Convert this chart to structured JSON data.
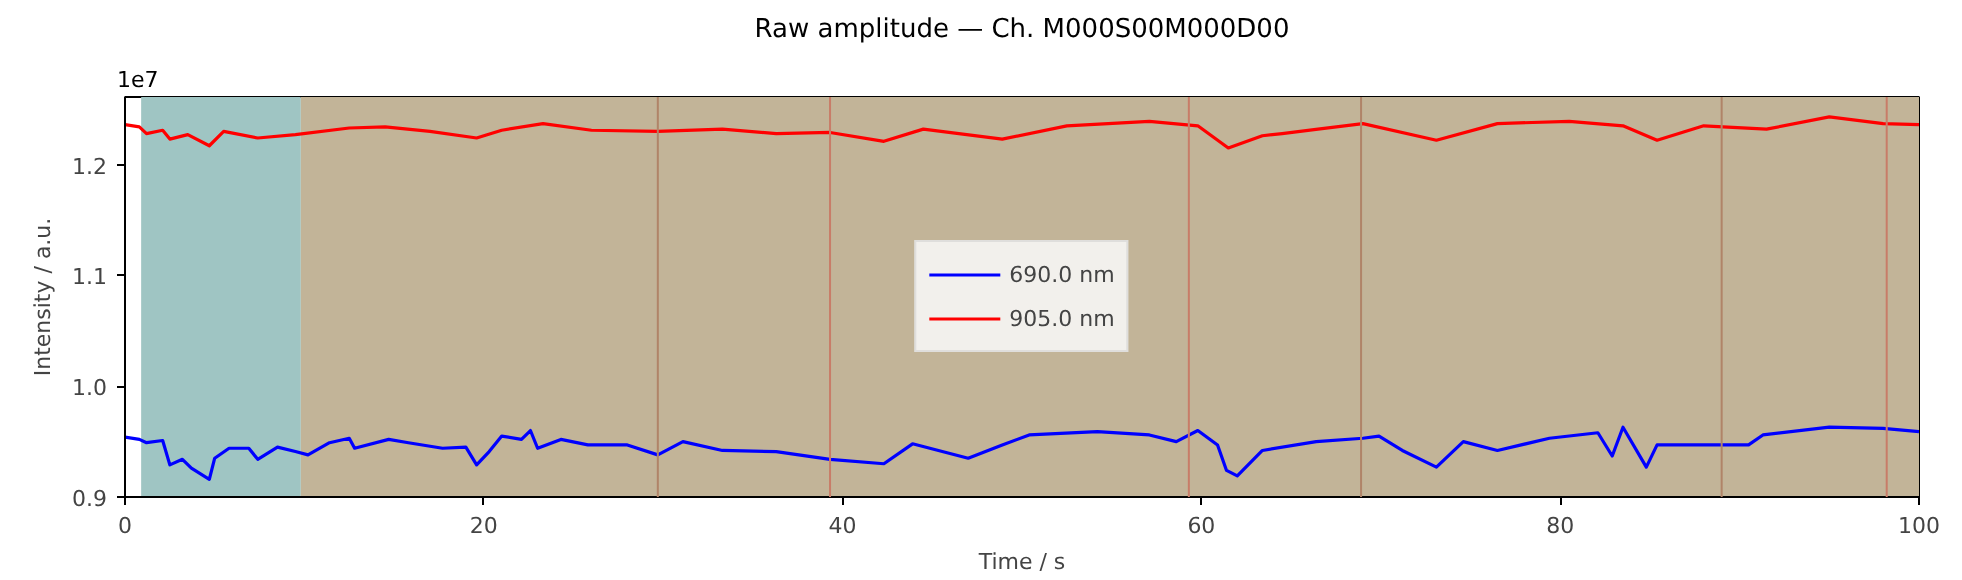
{
  "chart_data": {
    "type": "line",
    "title": "Raw amplitude — Ch. M000S00M000D00",
    "xlabel": "Time / s",
    "ylabel": "Intensity / a.u.",
    "annotations": [
      "1e7"
    ],
    "xlim": [
      0,
      100
    ],
    "xticks": [
      0,
      20,
      40,
      60,
      80,
      100
    ],
    "ylim": [
      0.9,
      1.261
    ],
    "yticks": [
      0.9,
      {
        "value": 1.0,
        "label": "1.0"
      },
      1.1,
      1.2
    ],
    "grid": false,
    "legend": "center",
    "bands": [
      {
        "axis": "x",
        "from": 0.9,
        "to": 9.8,
        "color": "#9fc5c3"
      },
      {
        "axis": "x",
        "from": 9.8,
        "to": 100,
        "color": "#c2b498"
      }
    ],
    "ref_lines": [
      {
        "axis": "x",
        "value": 29.7,
        "color": "#b08468"
      },
      {
        "axis": "x",
        "value": 39.3,
        "color": "#c87c68"
      },
      {
        "axis": "x",
        "value": 59.3,
        "color": "#c87c68"
      },
      {
        "axis": "x",
        "value": 68.9,
        "color": "#b08468"
      },
      {
        "axis": "x",
        "value": 89.0,
        "color": "#b08468"
      },
      {
        "axis": "x",
        "value": 98.2,
        "color": "#c87c68"
      }
    ],
    "series": [
      {
        "name": "690.0 nm",
        "color": "#0000ff",
        "x": [
          0,
          0.8,
          1.2,
          2.1,
          2.5,
          3.2,
          3.7,
          4.7,
          5.0,
          5.8,
          6.9,
          7.4,
          8.5,
          9.5,
          10.2,
          11.4,
          12.5,
          12.8,
          14.7,
          15.8,
          17.7,
          19.0,
          19.6,
          20.3,
          21.0,
          22.1,
          22.6,
          23.0,
          24.3,
          25.8,
          28.0,
          29.7,
          31.1,
          33.3,
          36.3,
          39.3,
          42.3,
          43.9,
          47.0,
          48.9,
          50.4,
          54.2,
          57.1,
          58.6,
          59.8,
          60.9,
          61.4,
          62.0,
          63.4,
          66.4,
          69.0,
          69.9,
          71.2,
          73.1,
          74.6,
          76.5,
          79.4,
          82.1,
          82.9,
          83.5,
          84.8,
          85.4,
          88.0,
          90.5,
          91.3,
          95.0,
          98.0,
          100
        ],
        "values": [
          0.954,
          0.952,
          0.949,
          0.951,
          0.929,
          0.934,
          0.926,
          0.916,
          0.935,
          0.944,
          0.944,
          0.934,
          0.945,
          0.941,
          0.938,
          0.949,
          0.953,
          0.944,
          0.952,
          0.949,
          0.944,
          0.945,
          0.929,
          0.941,
          0.955,
          0.952,
          0.96,
          0.944,
          0.952,
          0.947,
          0.947,
          0.938,
          0.95,
          0.942,
          0.941,
          0.934,
          0.93,
          0.948,
          0.935,
          0.947,
          0.956,
          0.959,
          0.956,
          0.95,
          0.96,
          0.947,
          0.924,
          0.919,
          0.942,
          0.95,
          0.953,
          0.955,
          0.942,
          0.927,
          0.95,
          0.942,
          0.953,
          0.958,
          0.937,
          0.963,
          0.927,
          0.947,
          0.947,
          0.947,
          0.956,
          0.963,
          0.962,
          0.959
        ]
      },
      {
        "name": "905.0 nm",
        "color": "#ff0000",
        "x": [
          0,
          0.8,
          1.2,
          2.1,
          2.5,
          3.5,
          4.7,
          5.5,
          7.4,
          9.5,
          12.5,
          14.5,
          17.0,
          19.6,
          21.0,
          23.3,
          26.0,
          29.7,
          33.3,
          36.3,
          39.3,
          42.3,
          44.5,
          48.9,
          52.5,
          57.1,
          59.8,
          61.5,
          63.4,
          64.5,
          66.5,
          69.0,
          73.1,
          76.5,
          80.5,
          83.5,
          85.4,
          88.0,
          91.5,
          95.0,
          98.0,
          100
        ],
        "values": [
          1.236,
          1.234,
          1.228,
          1.231,
          1.223,
          1.227,
          1.217,
          1.23,
          1.224,
          1.227,
          1.233,
          1.234,
          1.23,
          1.224,
          1.231,
          1.237,
          1.231,
          1.23,
          1.232,
          1.228,
          1.229,
          1.221,
          1.232,
          1.223,
          1.235,
          1.239,
          1.235,
          1.215,
          1.226,
          1.228,
          1.232,
          1.237,
          1.222,
          1.237,
          1.239,
          1.235,
          1.222,
          1.235,
          1.232,
          1.243,
          1.237,
          1.236
        ]
      }
    ]
  }
}
